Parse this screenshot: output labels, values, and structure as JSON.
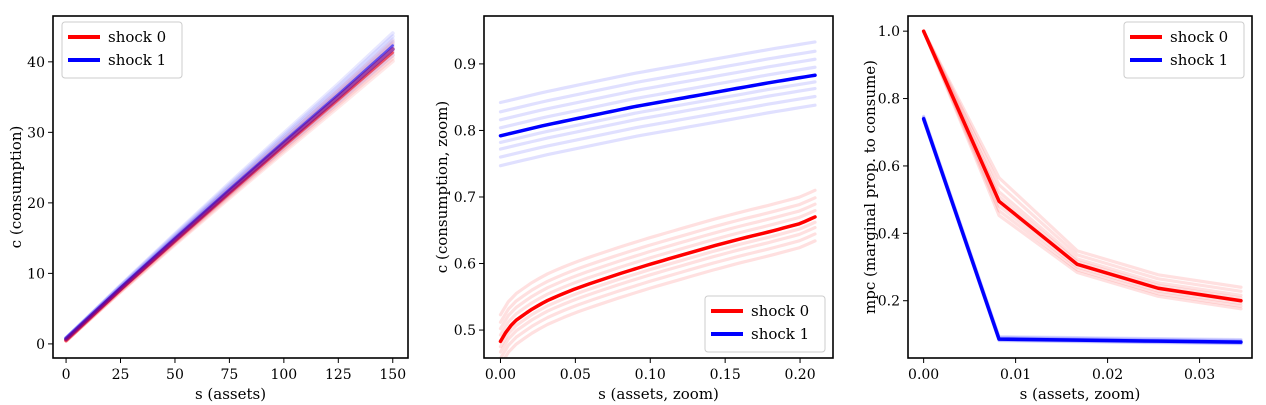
{
  "chart_data": [
    {
      "type": "line",
      "xlabel": "s (assets)",
      "ylabel": "c (consumption)",
      "xlim": [
        -6,
        157
      ],
      "ylim": [
        -2,
        46.5
      ],
      "xticks": [
        0,
        25,
        50,
        75,
        100,
        125,
        150
      ],
      "yticks": [
        0,
        10,
        20,
        30,
        40
      ],
      "legend": {
        "placement": "top-left"
      },
      "series": [
        {
          "name": "shock 0",
          "color": "#ff0000",
          "x": [
            0,
            25,
            50,
            75,
            100,
            125,
            150
          ],
          "y": [
            0.48,
            7.6,
            14.5,
            21.3,
            28.0,
            34.6,
            41.3
          ]
        },
        {
          "name": "shock 1",
          "color": "#0000ff",
          "x": [
            0,
            25,
            50,
            75,
            100,
            125,
            150
          ],
          "y": [
            0.79,
            8.0,
            15.0,
            21.9,
            28.7,
            35.4,
            42.3
          ]
        }
      ],
      "band_spreads": [
        -1.2,
        -0.8,
        -0.4,
        0,
        0.4,
        0.8,
        1.2,
        1.6
      ]
    },
    {
      "type": "line",
      "xlabel": "s (assets, zoom)",
      "ylabel": "c (consumption, zoom)",
      "xlim": [
        -0.011,
        0.222
      ],
      "ylim": [
        0.458,
        0.972
      ],
      "xticks": [
        "0.00",
        "0.05",
        "0.10",
        "0.15",
        "0.20"
      ],
      "yticks": [
        "0.5",
        "0.6",
        "0.7",
        "0.8",
        "0.9"
      ],
      "legend": {
        "placement": "bottom-right"
      },
      "series": [
        {
          "name": "shock 0",
          "color": "#ff0000",
          "x": [
            0,
            0.005,
            0.01,
            0.02,
            0.03,
            0.04,
            0.05,
            0.06,
            0.08,
            0.1,
            0.12,
            0.14,
            0.16,
            0.18,
            0.2,
            0.21
          ],
          "y": [
            0.483,
            0.502,
            0.514,
            0.53,
            0.543,
            0.553,
            0.562,
            0.57,
            0.585,
            0.599,
            0.612,
            0.625,
            0.637,
            0.648,
            0.66,
            0.67
          ]
        },
        {
          "name": "shock 1",
          "color": "#0000ff",
          "x": [
            0,
            0.03,
            0.06,
            0.09,
            0.12,
            0.15,
            0.18,
            0.21
          ],
          "y": [
            0.792,
            0.808,
            0.822,
            0.836,
            0.848,
            0.86,
            0.872,
            0.883
          ]
        }
      ],
      "band_spreads": [
        -0.045,
        -0.032,
        -0.02,
        -0.01,
        0.012,
        0.024,
        0.036,
        0.05
      ]
    },
    {
      "type": "line",
      "xlabel": "s (assets, zoom)",
      "ylabel": "mpc (marginal prop. to consume)",
      "xlim": [
        -0.0017,
        0.0357
      ],
      "ylim": [
        0.03,
        1.045
      ],
      "xticks": [
        "0.00",
        "0.01",
        "0.02",
        "0.03"
      ],
      "yticks": [
        "0.2",
        "0.4",
        "0.6",
        "0.8",
        "1.0"
      ],
      "legend": {
        "placement": "top-right"
      },
      "series": [
        {
          "name": "shock 0",
          "color": "#ff0000",
          "x": [
            0,
            0.0082,
            0.0167,
            0.0255,
            0.0345
          ],
          "y": [
            1.0,
            0.495,
            0.308,
            0.237,
            0.2
          ]
        },
        {
          "name": "shock 1",
          "color": "#0000ff",
          "x": [
            0,
            0.0082,
            0.0167,
            0.0255,
            0.0345
          ],
          "y": [
            0.74,
            0.086,
            0.083,
            0.08,
            0.077
          ]
        }
      ],
      "band_spreads": [
        -0.03,
        -0.02,
        -0.01,
        0.01,
        0.02,
        0.035,
        0.05
      ]
    }
  ]
}
